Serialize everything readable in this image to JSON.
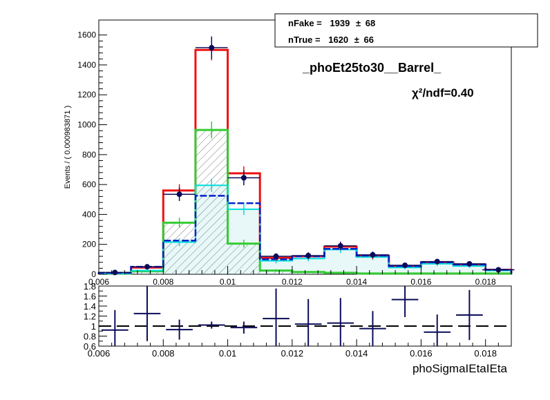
{
  "legend": {
    "fake_label": "nFake =",
    "fake_value": "1939",
    "fake_err": "68",
    "true_label": "nTrue =",
    "true_value": "1620",
    "true_err": "66",
    "pm": "±"
  },
  "title": "_phoEt25to30__Barrel_",
  "chi2": "χ²/ndf=0.40",
  "chart_data": [
    {
      "type": "bar",
      "panel": "top",
      "ylabel": "Events / ( 0.000983871 )",
      "xlim": [
        0.006,
        0.0188
      ],
      "ylim": [
        0,
        1700
      ],
      "y_ticks": [
        0,
        200,
        400,
        600,
        800,
        1000,
        1200,
        1400,
        1600
      ],
      "y_tick_labels": [
        "0",
        "200",
        "400",
        "600",
        "800",
        "1000",
        "1200",
        "1400",
        "1600"
      ],
      "x_ticks": [
        0.006,
        0.008,
        0.01,
        0.012,
        0.014,
        0.016,
        0.018
      ],
      "x_tick_labels": [
        "0.006",
        "0.008",
        "0.01",
        "0.012",
        "0.014",
        "0.016",
        "0.018"
      ],
      "bin_edges": [
        0.006,
        0.007,
        0.008,
        0.009,
        0.01,
        0.011,
        0.012,
        0.013,
        0.014,
        0.015,
        0.016,
        0.017,
        0.018,
        0.0188
      ],
      "colors": {
        "total": "#ee1111",
        "data": "#0b0b5a",
        "fit": "#0022cc",
        "fake": "#33cc33",
        "true": "#00dddd",
        "hatch": "#7a7a7a",
        "true_fill": "#3fbfbf"
      },
      "series": [
        {
          "values": [
            8,
            45,
            560,
            1500,
            675,
            110,
            120,
            185,
            120,
            55,
            80,
            65,
            30
          ]
        },
        {
          "values": [
            5,
            20,
            345,
            965,
            205,
            25,
            15,
            10,
            5,
            5,
            5,
            5,
            5
          ]
        },
        {
          "values": [
            5,
            25,
            215,
            595,
            435,
            90,
            105,
            165,
            115,
            45,
            70,
            55,
            25
          ]
        },
        {
          "values": [
            10,
            50,
            225,
            525,
            475,
            100,
            120,
            170,
            125,
            55,
            80,
            65,
            30
          ]
        }
      ],
      "data_points": {
        "x": [
          0.0065,
          0.0075,
          0.0085,
          0.0095,
          0.0105,
          0.0115,
          0.0125,
          0.0135,
          0.0145,
          0.0155,
          0.0165,
          0.0175,
          0.0184
        ],
        "y": [
          12,
          50,
          535,
          1515,
          645,
          120,
          125,
          190,
          130,
          60,
          85,
          70,
          30
        ],
        "err": [
          5,
          10,
          45,
          75,
          50,
          20,
          22,
          28,
          22,
          15,
          18,
          15,
          10
        ]
      }
    },
    {
      "type": "scatter",
      "panel": "ratio",
      "xlabel": "phoSigmaIEtaIEta",
      "xlim": [
        0.006,
        0.0188
      ],
      "ylim": [
        0.6,
        1.8
      ],
      "y_ticks": [
        0.6,
        0.8,
        1.0,
        1.2,
        1.4,
        1.6,
        1.8
      ],
      "y_tick_labels": [
        "0.6",
        "0.8",
        "1",
        "1.2",
        "1.4",
        "1.6",
        "1.8"
      ],
      "x_ticks": [
        0.006,
        0.008,
        0.01,
        0.012,
        0.014,
        0.016,
        0.018
      ],
      "x_tick_labels": [
        "0.006",
        "0.008",
        "0.01",
        "0.012",
        "0.014",
        "0.016",
        "0.018"
      ],
      "reference_line": 1.0,
      "x": [
        0.0065,
        0.0075,
        0.0085,
        0.0095,
        0.0105,
        0.0115,
        0.0125,
        0.0135,
        0.0145,
        0.0155,
        0.0165,
        0.0175
      ],
      "y": [
        0.92,
        1.25,
        0.93,
        1.02,
        0.97,
        1.15,
        1.04,
        1.06,
        0.95,
        1.53,
        0.88,
        1.22
      ],
      "y_err": [
        0.4,
        0.55,
        0.2,
        0.07,
        0.12,
        0.6,
        0.5,
        0.5,
        0.35,
        0.35,
        0.35,
        0.5
      ],
      "color": "#0b0b5a"
    }
  ]
}
